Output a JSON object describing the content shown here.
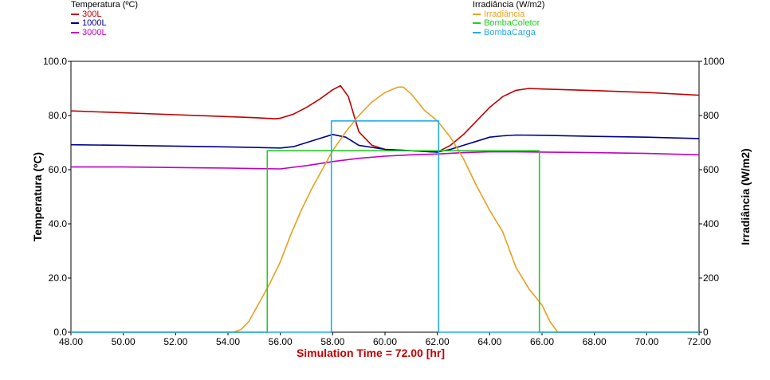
{
  "chart_data": {
    "type": "line",
    "legend_left": {
      "title": "Temperatura (ºC)",
      "series": [
        {
          "name": "300L",
          "color": "#c00000"
        },
        {
          "name": "1000L",
          "color": "#00008b"
        },
        {
          "name": "3000L",
          "color": "#c000c0"
        }
      ]
    },
    "legend_right": {
      "title": "Irradiância (W/m2)",
      "series": [
        {
          "name": "Irradiância",
          "color": "#e8a020"
        },
        {
          "name": "BombaColetor",
          "color": "#22cc22"
        },
        {
          "name": "BombaCarga",
          "color": "#22aaee"
        }
      ]
    },
    "xlabel": "Simulation Time =  72.00 [hr]",
    "ylabel_left": "Temperatura (ºC)",
    "ylabel_right": "Irradiância (W/m2)",
    "xlim": [
      48,
      72
    ],
    "ylim_left": [
      0,
      100
    ],
    "ylim_right": [
      0,
      1000
    ],
    "x_ticks": [
      "48.00",
      "50.00",
      "52.00",
      "54.00",
      "56.00",
      "58.00",
      "60.00",
      "62.00",
      "64.00",
      "66.00",
      "68.00",
      "70.00",
      "72.00"
    ],
    "y_left_ticks": [
      "0.0",
      "20.0",
      "40.0",
      "60.0",
      "80.0",
      "100.0"
    ],
    "y_right_ticks": [
      "0",
      "200",
      "400",
      "600",
      "800",
      "1000"
    ],
    "series": [
      {
        "name": "300L",
        "axis": "left",
        "color": "#c00000",
        "x": [
          48,
          50,
          52,
          54,
          55,
          55.8,
          56,
          56.5,
          57,
          57.5,
          58,
          58.3,
          58.6,
          59,
          59.5,
          60,
          61,
          62,
          62.5,
          63,
          63.5,
          64,
          64.5,
          65,
          65.5,
          66,
          68,
          70,
          72
        ],
        "y": [
          81.7,
          81,
          80.3,
          79.6,
          79.2,
          78.8,
          79,
          80.5,
          83,
          86,
          89.5,
          91,
          87,
          74,
          69,
          67.5,
          67,
          66.5,
          69,
          73,
          78,
          83,
          87,
          89.3,
          90,
          89.8,
          89.2,
          88.5,
          87.5
        ]
      },
      {
        "name": "1000L",
        "axis": "left",
        "color": "#00008b",
        "x": [
          48,
          50,
          52,
          54,
          55,
          56,
          56.5,
          57,
          57.5,
          58,
          58.5,
          59,
          60,
          61,
          62,
          62.5,
          63,
          63.5,
          64,
          64.5,
          65,
          66,
          68,
          70,
          72
        ],
        "y": [
          69.2,
          69,
          68.7,
          68.4,
          68.2,
          68,
          68.5,
          70,
          71.5,
          73,
          72,
          69,
          67.5,
          67,
          66.5,
          67.5,
          69,
          70.5,
          72,
          72.5,
          72.8,
          72.7,
          72.3,
          72,
          71.5
        ]
      },
      {
        "name": "3000L",
        "axis": "left",
        "color": "#c000c0",
        "x": [
          48,
          50,
          52,
          54,
          55,
          56,
          57,
          58,
          59,
          60,
          61,
          62,
          63,
          64,
          65,
          66,
          68,
          70,
          72
        ],
        "y": [
          61,
          61,
          60.8,
          60.6,
          60.4,
          60.3,
          61.5,
          63,
          64.2,
          65,
          65.5,
          65.8,
          66.3,
          66.6,
          66.6,
          66.5,
          66.3,
          66,
          65.5
        ]
      },
      {
        "name": "Irradiância",
        "axis": "right",
        "color": "#e8a020",
        "x": [
          48,
          54.2,
          54.5,
          54.8,
          55.2,
          55.6,
          56,
          56.4,
          56.8,
          57.2,
          57.6,
          58,
          58.5,
          59,
          59.5,
          60,
          60.5,
          60.7,
          61,
          61.5,
          62,
          62.5,
          63,
          63.5,
          64,
          64.5,
          65,
          65.5,
          66,
          66.3,
          66.6,
          72
        ],
        "y": [
          0,
          0,
          10,
          40,
          110,
          180,
          260,
          360,
          450,
          530,
          600,
          670,
          740,
          800,
          850,
          885,
          905,
          905,
          880,
          820,
          780,
          720,
          640,
          540,
          450,
          370,
          240,
          160,
          100,
          40,
          0,
          0
        ]
      },
      {
        "name": "BombaColetor",
        "axis": "right",
        "color": "#22cc22",
        "x": [
          48,
          55.5,
          55.5,
          65.9,
          65.9,
          72
        ],
        "y": [
          0,
          0,
          670,
          670,
          0,
          0
        ]
      },
      {
        "name": "BombaCarga",
        "axis": "right",
        "color": "#22aaee",
        "x": [
          48,
          57.95,
          57.95,
          62.05,
          62.05,
          72
        ],
        "y": [
          0,
          0,
          780,
          780,
          0,
          0
        ]
      }
    ],
    "grid": false
  }
}
